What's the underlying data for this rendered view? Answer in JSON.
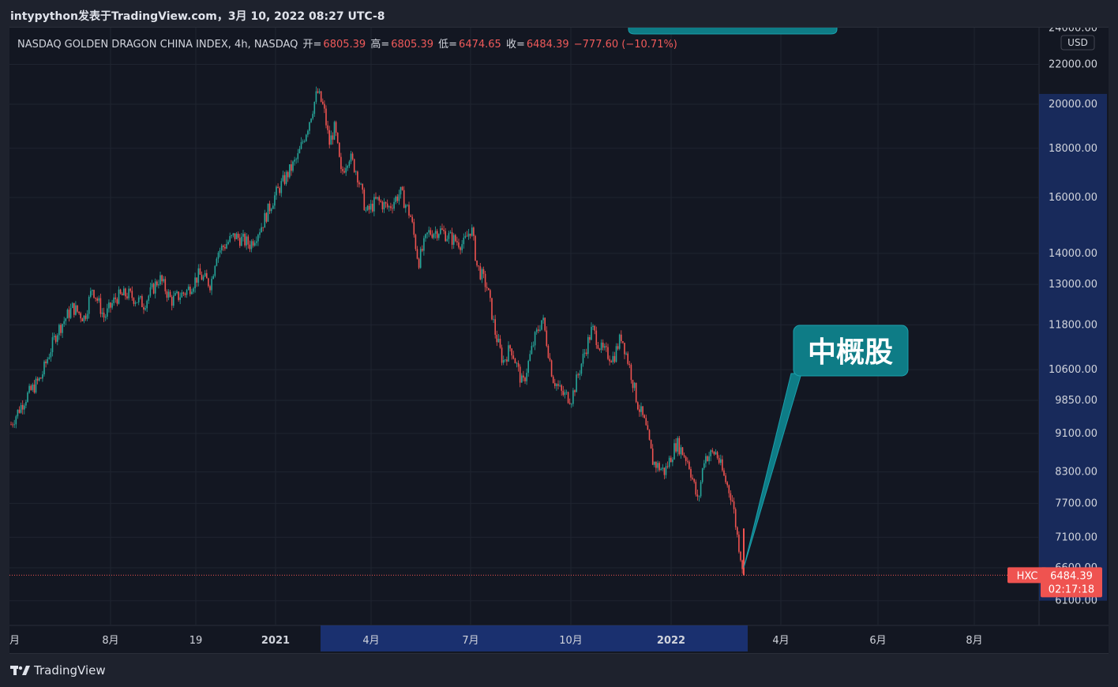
{
  "header": {
    "title": "intypython发表于TradingView.com，3月 10, 2022 08:27 UTC-8"
  },
  "legend": {
    "symbol": "NASDAQ GOLDEN DRAGON CHINA INDEX, 4h, NASDAQ",
    "open_label": "开=",
    "open": "6805.39",
    "high_label": "高=",
    "high": "6805.39",
    "low_label": "低=",
    "low": "6474.65",
    "close_label": "收=",
    "close": "6484.39",
    "change": "−777.60 (−10.71%)"
  },
  "price_axis": {
    "currency": "USD",
    "ticks": [
      "24000.00",
      "22000.00",
      "20000.00",
      "18000.00",
      "16000.00",
      "14000.00",
      "13000.00",
      "11800.00",
      "10600.00",
      "9850.00",
      "9100.00",
      "8300.00",
      "7700.00",
      "7100.00",
      "6600.00",
      "6100.00"
    ],
    "badge_symbol": "HXC",
    "badge_price": "6484.39",
    "badge_countdown": "02:17:18"
  },
  "time_axis": {
    "ticks": [
      "月",
      "8月",
      "19",
      "2021",
      "4月",
      "7月",
      "10月",
      "2022",
      "4月",
      "6月",
      "8月"
    ]
  },
  "annotation": {
    "callout_text": "中概股"
  },
  "footer": {
    "brand": "TradingView"
  },
  "colors": {
    "background": "#131722",
    "up": "#26a69a",
    "down": "#ef5350",
    "callout": "#0e7c86",
    "highlight": "#1e3a8a"
  },
  "chart_data": {
    "type": "candlestick",
    "title": "NASDAQ GOLDEN DRAGON CHINA INDEX, 4h, NASDAQ",
    "ylabel": "USD",
    "y_scale": "log",
    "ylim": [
      5800,
      24500
    ],
    "x": [
      "2020-06",
      "2020-07",
      "2020-08",
      "2020-09",
      "2020-10",
      "2020-11",
      "2020-12",
      "2021-01",
      "2021-02",
      "2021-03",
      "2021-04",
      "2021-05",
      "2021-06",
      "2021-07",
      "2021-08",
      "2021-09",
      "2021-10",
      "2021-11",
      "2021-12",
      "2022-01",
      "2022-02",
      "2022-03"
    ],
    "series": [
      {
        "name": "HXC",
        "close": [
          9300,
          11200,
          12700,
          12900,
          12400,
          13200,
          14500,
          16800,
          20500,
          16500,
          17800,
          15500,
          15000,
          14700,
          11300,
          10400,
          11200,
          10600,
          8600,
          8900,
          8400,
          6484.39
        ]
      }
    ],
    "last": {
      "open": 6805.39,
      "high": 6805.39,
      "low": 6474.65,
      "close": 6484.39,
      "change": -777.6,
      "change_pct": -10.71
    }
  }
}
